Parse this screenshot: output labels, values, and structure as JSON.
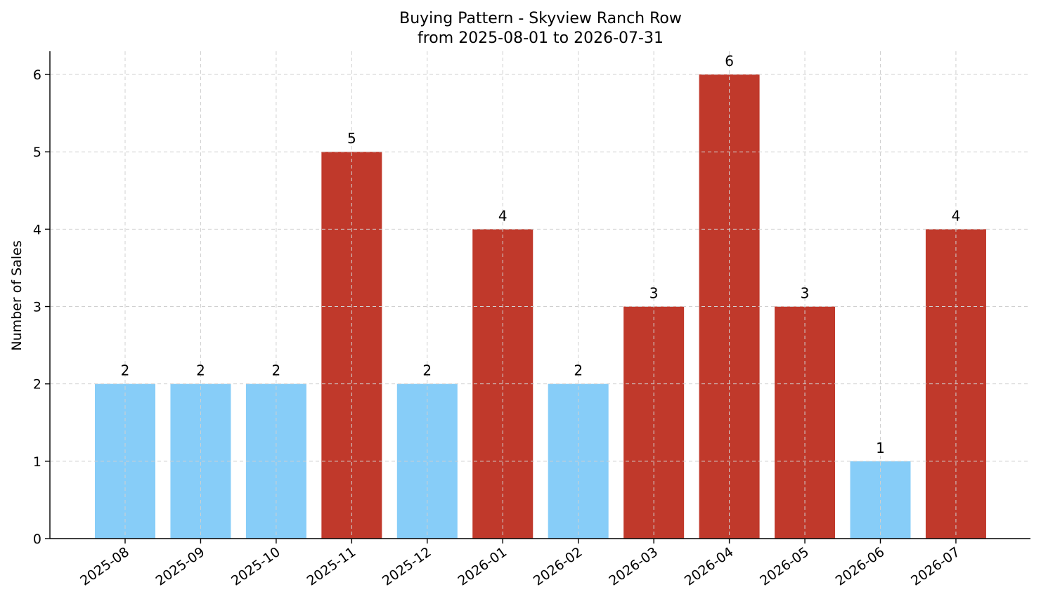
{
  "chart_data": {
    "type": "bar",
    "title": "Buying Pattern - Skyview Ranch Row",
    "subtitle": "from 2025-08-01 to 2026-07-31",
    "xlabel": "",
    "ylabel": "Number of Sales",
    "categories": [
      "2025-08",
      "2025-09",
      "2025-10",
      "2025-11",
      "2025-12",
      "2026-01",
      "2026-02",
      "2026-03",
      "2026-04",
      "2026-05",
      "2026-06",
      "2026-07"
    ],
    "values": [
      2,
      2,
      2,
      5,
      2,
      4,
      2,
      3,
      6,
      3,
      1,
      4
    ],
    "bar_colors": [
      "#87cdf8",
      "#87cdf8",
      "#87cdf8",
      "#c0392b",
      "#87cdf8",
      "#c0392b",
      "#87cdf8",
      "#c0392b",
      "#c0392b",
      "#c0392b",
      "#87cdf8",
      "#c0392b"
    ],
    "ylim": [
      0,
      6.3
    ],
    "yticks": [
      0,
      1,
      2,
      3,
      4,
      5,
      6
    ],
    "grid": true,
    "legend": "none"
  }
}
